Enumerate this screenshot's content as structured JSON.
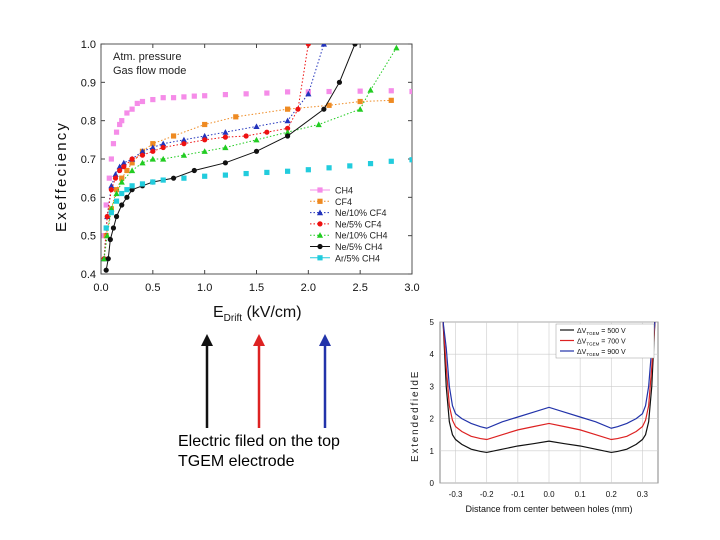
{
  "chart_data": [
    {
      "type": "scatter",
      "title": "",
      "annotations": [
        "Atm. pressure",
        "Gas flow mode"
      ],
      "xlabel_main": "E",
      "xlabel_sub": "Drift",
      "xlabel_unit": " (kV/cm)",
      "ylabel": "E x e f f e c i e n c y",
      "xlim": [
        0.0,
        3.0
      ],
      "ylim": [
        0.4,
        1.0
      ],
      "xticks": [
        "0.0",
        "0.5",
        "1.0",
        "1.5",
        "2.0",
        "2.5",
        "3.0"
      ],
      "yticks": [
        "0.4",
        "0.5",
        "0.6",
        "0.7",
        "0.8",
        "0.9",
        "1.0"
      ],
      "legend_position": "right-middle",
      "series": [
        {
          "name": "CH4",
          "color": "#f58ce8",
          "marker": "square",
          "line": "none",
          "x": [
            0.03,
            0.05,
            0.08,
            0.1,
            0.12,
            0.15,
            0.18,
            0.2,
            0.25,
            0.3,
            0.35,
            0.4,
            0.5,
            0.6,
            0.7,
            0.8,
            0.9,
            1.0,
            1.2,
            1.4,
            1.6,
            1.8,
            2.0,
            2.2,
            2.5,
            2.8,
            3.0
          ],
          "y": [
            0.5,
            0.58,
            0.65,
            0.7,
            0.74,
            0.77,
            0.79,
            0.8,
            0.82,
            0.83,
            0.845,
            0.85,
            0.855,
            0.86,
            0.86,
            0.862,
            0.864,
            0.865,
            0.868,
            0.87,
            0.872,
            0.875,
            0.875,
            0.876,
            0.877,
            0.878,
            0.876
          ]
        },
        {
          "name": "CF4",
          "color": "#ee8a22",
          "marker": "square",
          "line": "dotted",
          "x": [
            0.05,
            0.1,
            0.15,
            0.2,
            0.25,
            0.3,
            0.4,
            0.5,
            0.7,
            1.0,
            1.3,
            1.8,
            2.2,
            2.5,
            2.8
          ],
          "y": [
            0.5,
            0.57,
            0.62,
            0.65,
            0.67,
            0.69,
            0.72,
            0.74,
            0.76,
            0.79,
            0.81,
            0.83,
            0.84,
            0.85,
            0.853
          ]
        },
        {
          "name": "Ne/10% CF4",
          "color": "#2233bb",
          "marker": "triangle",
          "line": "dotted",
          "x": [
            0.03,
            0.06,
            0.1,
            0.14,
            0.18,
            0.22,
            0.3,
            0.4,
            0.5,
            0.6,
            0.8,
            1.0,
            1.2,
            1.5,
            1.8,
            2.0,
            2.15
          ],
          "y": [
            0.44,
            0.55,
            0.63,
            0.66,
            0.68,
            0.69,
            0.7,
            0.72,
            0.73,
            0.74,
            0.75,
            0.76,
            0.77,
            0.785,
            0.8,
            0.87,
            1.0
          ]
        },
        {
          "name": "Ne/5% CF4",
          "color": "#ee1111",
          "marker": "circle",
          "line": "dotted",
          "x": [
            0.03,
            0.06,
            0.1,
            0.14,
            0.18,
            0.22,
            0.3,
            0.4,
            0.5,
            0.6,
            0.8,
            1.0,
            1.2,
            1.4,
            1.6,
            1.8,
            1.9,
            2.0
          ],
          "y": [
            0.44,
            0.55,
            0.62,
            0.65,
            0.67,
            0.68,
            0.7,
            0.71,
            0.72,
            0.73,
            0.74,
            0.75,
            0.757,
            0.76,
            0.77,
            0.78,
            0.83,
            1.0
          ]
        },
        {
          "name": "Ne/10% CH4",
          "color": "#22cc22",
          "marker": "triangle",
          "line": "dotted",
          "x": [
            0.03,
            0.06,
            0.1,
            0.15,
            0.2,
            0.3,
            0.4,
            0.5,
            0.6,
            0.8,
            1.0,
            1.2,
            1.5,
            1.8,
            2.1,
            2.5,
            2.6,
            2.85
          ],
          "y": [
            0.44,
            0.5,
            0.57,
            0.61,
            0.64,
            0.67,
            0.69,
            0.7,
            0.7,
            0.71,
            0.72,
            0.73,
            0.75,
            0.77,
            0.79,
            0.83,
            0.88,
            0.99
          ]
        },
        {
          "name": "Ne/5% CH4",
          "color": "#111111",
          "marker": "circle",
          "line": "solid",
          "x": [
            0.05,
            0.07,
            0.09,
            0.12,
            0.15,
            0.2,
            0.25,
            0.3,
            0.4,
            0.5,
            0.7,
            0.9,
            1.2,
            1.5,
            1.8,
            2.15,
            2.3,
            2.45
          ],
          "y": [
            0.41,
            0.44,
            0.49,
            0.52,
            0.55,
            0.58,
            0.6,
            0.62,
            0.63,
            0.64,
            0.65,
            0.67,
            0.69,
            0.72,
            0.76,
            0.83,
            0.9,
            1.0
          ]
        },
        {
          "name": "Ar/5% CH4",
          "color": "#22ccdd",
          "marker": "square",
          "line": "none",
          "x": [
            0.05,
            0.1,
            0.15,
            0.2,
            0.25,
            0.3,
            0.4,
            0.5,
            0.6,
            0.8,
            1.0,
            1.2,
            1.4,
            1.6,
            1.8,
            2.0,
            2.2,
            2.4,
            2.6,
            2.8,
            3.0
          ],
          "y": [
            0.52,
            0.56,
            0.59,
            0.61,
            0.62,
            0.63,
            0.635,
            0.64,
            0.645,
            0.65,
            0.655,
            0.658,
            0.662,
            0.665,
            0.668,
            0.672,
            0.677,
            0.682,
            0.688,
            0.694,
            0.698
          ]
        }
      ]
    },
    {
      "type": "line",
      "xlabel": "Distance from center between holes (mm)",
      "ylabel": "E x t e n d e d f i e l d E",
      "xlim": [
        -0.35,
        0.35
      ],
      "ylim": [
        0,
        5
      ],
      "xticks": [
        "-0.3",
        "-0.2",
        "-0.1",
        "0.0",
        "0.1",
        "0.2",
        "0.3"
      ],
      "yticks": [
        "0",
        "1",
        "2",
        "3",
        "4",
        "5"
      ],
      "grid": true,
      "legend_position": "top-right",
      "series": [
        {
          "name_prefix": "ΔV",
          "name_sub": "TGEM",
          "name_value": " = 500 V",
          "color": "#111111",
          "x": [
            -0.34,
            -0.33,
            -0.32,
            -0.31,
            -0.3,
            -0.28,
            -0.25,
            -0.22,
            -0.2,
            -0.15,
            -0.1,
            -0.05,
            0.0,
            0.05,
            0.1,
            0.15,
            0.2,
            0.22,
            0.25,
            0.28,
            0.3,
            0.31,
            0.32,
            0.33,
            0.34
          ],
          "y": [
            5.0,
            3.0,
            1.9,
            1.5,
            1.35,
            1.2,
            1.05,
            0.98,
            0.95,
            1.05,
            1.15,
            1.22,
            1.3,
            1.22,
            1.15,
            1.05,
            0.95,
            0.98,
            1.05,
            1.2,
            1.35,
            1.5,
            1.9,
            3.0,
            5.0
          ]
        },
        {
          "name_prefix": "ΔV",
          "name_sub": "TGEM",
          "name_value": " = 700 V",
          "color": "#dd2222",
          "x": [
            -0.34,
            -0.33,
            -0.32,
            -0.31,
            -0.3,
            -0.28,
            -0.25,
            -0.22,
            -0.2,
            -0.15,
            -0.1,
            -0.05,
            0.0,
            0.05,
            0.1,
            0.15,
            0.2,
            0.22,
            0.25,
            0.28,
            0.3,
            0.31,
            0.32,
            0.33,
            0.34
          ],
          "y": [
            5.0,
            3.6,
            2.4,
            1.95,
            1.75,
            1.6,
            1.45,
            1.38,
            1.35,
            1.5,
            1.65,
            1.75,
            1.85,
            1.75,
            1.65,
            1.5,
            1.35,
            1.38,
            1.45,
            1.6,
            1.75,
            1.95,
            2.4,
            3.6,
            5.0
          ]
        },
        {
          "name_prefix": "ΔV",
          "name_sub": "TGEM",
          "name_value": " = 900 V",
          "color": "#2233aa",
          "x": [
            -0.34,
            -0.33,
            -0.32,
            -0.31,
            -0.3,
            -0.28,
            -0.25,
            -0.22,
            -0.2,
            -0.15,
            -0.1,
            -0.05,
            0.0,
            0.05,
            0.1,
            0.15,
            0.2,
            0.22,
            0.25,
            0.28,
            0.3,
            0.31,
            0.32,
            0.33,
            0.34
          ],
          "y": [
            5.0,
            4.2,
            3.0,
            2.4,
            2.15,
            2.0,
            1.85,
            1.75,
            1.7,
            1.9,
            2.05,
            2.2,
            2.35,
            2.2,
            2.05,
            1.9,
            1.7,
            1.75,
            1.85,
            2.0,
            2.15,
            2.4,
            3.0,
            4.2,
            5.0
          ]
        }
      ]
    }
  ],
  "caption": {
    "line1": "Electric filed on the top",
    "line2": "TGEM electrode"
  },
  "arrows": [
    {
      "name": "black",
      "color": "#111111"
    },
    {
      "name": "red",
      "color": "#dd2222"
    },
    {
      "name": "blue",
      "color": "#2233aa"
    }
  ]
}
